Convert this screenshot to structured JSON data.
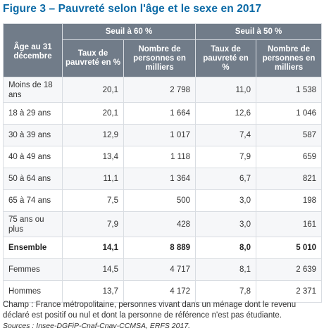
{
  "title": "Figure 3 – Pauvreté selon l'âge et le sexe en 2017",
  "table": {
    "row_header": "Âge au 31 décembre",
    "groups": [
      "Seuil à 60 %",
      "Seuil à 50 %"
    ],
    "subheaders": [
      "Taux de pauvreté en %",
      "Nombre de personnes en milliers",
      "Taux de pauvreté en %",
      "Nombre de personnes en milliers"
    ],
    "rows": [
      {
        "label": "Moins de 18 ans",
        "values": [
          "20,1",
          "2 798",
          "11,0",
          "1 538"
        ]
      },
      {
        "label": "18 à 29 ans",
        "values": [
          "20,1",
          "1 664",
          "12,6",
          "1 046"
        ]
      },
      {
        "label": "30 à 39 ans",
        "values": [
          "12,9",
          "1 017",
          "7,4",
          "587"
        ]
      },
      {
        "label": "40 à 49 ans",
        "values": [
          "13,4",
          "1 118",
          "7,9",
          "659"
        ]
      },
      {
        "label": "50 à 64 ans",
        "values": [
          "11,1",
          "1 364",
          "6,7",
          "821"
        ]
      },
      {
        "label": "65 à 74 ans",
        "values": [
          "7,5",
          "500",
          "3,0",
          "198"
        ]
      },
      {
        "label": "75 ans ou plus",
        "values": [
          "7,9",
          "428",
          "3,0",
          "161"
        ]
      },
      {
        "label": "Ensemble",
        "values": [
          "14,1",
          "8 889",
          "8,0",
          "5 010"
        ]
      },
      {
        "label": "Femmes",
        "values": [
          "14,5",
          "4 717",
          "8,1",
          "2 639"
        ]
      },
      {
        "label": "Hommes",
        "values": [
          "13,7",
          "4 172",
          "7,8",
          "2 371"
        ]
      }
    ]
  },
  "note": "Champ : France métropolitaine, personnes vivant dans un ménage dont le revenu déclaré est positif ou nul et dont la personne de référence n'est pas étudiante.",
  "source": "Sources : Insee-DGFiP-Cnaf-Cnav-CCMSA, ERFS 2017.",
  "colors": {
    "title": "#0b6aa6",
    "header_bg": "#717c89",
    "row_alt_bg": "#f6f7f9",
    "border": "#d9dde2"
  }
}
